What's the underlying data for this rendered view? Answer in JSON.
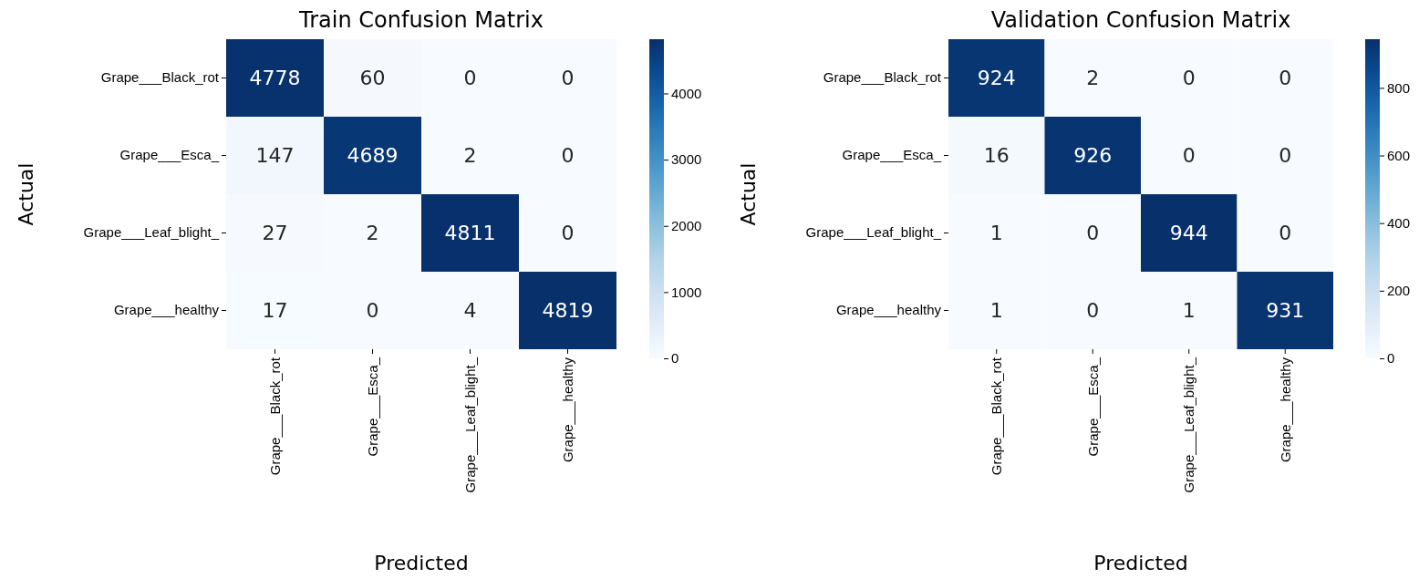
{
  "chart_data": [
    {
      "type": "heatmap",
      "title": "Train Confusion Matrix",
      "xlabel": "Predicted",
      "ylabel": "Actual",
      "categories": [
        "Grape___Black_rot",
        "Grape___Esca_",
        "Grape___Leaf_blight_",
        "Grape___healthy"
      ],
      "y_categories": [
        "Grape___Black_rot",
        "Grape___Esca_",
        "Grape___Leaf_blight_",
        "Grape___healthy"
      ],
      "cells": [
        [
          4778,
          60,
          0,
          0
        ],
        [
          147,
          4689,
          2,
          0
        ],
        [
          27,
          2,
          4811,
          0
        ],
        [
          17,
          0,
          4,
          4819
        ]
      ],
      "clim": [
        0,
        4819
      ],
      "cticks": [
        0,
        1000,
        2000,
        3000,
        4000
      ],
      "data_labels": true
    },
    {
      "type": "heatmap",
      "title": "Validation Confusion Matrix",
      "xlabel": "Predicted",
      "ylabel": "Actual",
      "categories": [
        "Grape___Black_rot",
        "Grape___Esca_",
        "Grape___Leaf_blight_",
        "Grape___healthy"
      ],
      "y_categories": [
        "Grape___Black_rot",
        "Grape___Esca_",
        "Grape___Leaf_blight_",
        "Grape___healthy"
      ],
      "cells": [
        [
          924,
          2,
          0,
          0
        ],
        [
          16,
          926,
          0,
          0
        ],
        [
          1,
          0,
          944,
          0
        ],
        [
          1,
          0,
          1,
          931
        ]
      ],
      "clim": [
        0,
        944
      ],
      "cticks": [
        0,
        200,
        400,
        600,
        800
      ],
      "data_labels": true
    }
  ]
}
